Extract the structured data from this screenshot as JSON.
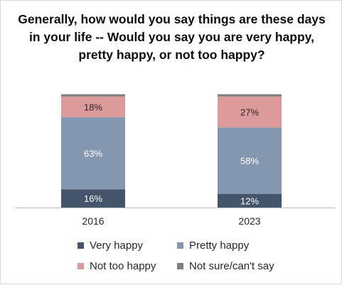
{
  "chart_data": {
    "type": "bar",
    "stacked": true,
    "title": "Generally, how would you say things are these days in your life -- Would you say you are very happy, pretty happy, or not too happy?",
    "categories": [
      "2016",
      "2023"
    ],
    "series": [
      {
        "name": "Very happy",
        "color": "#44546a",
        "values": [
          16,
          12
        ],
        "labels": [
          "16%",
          "12%"
        ]
      },
      {
        "name": "Pretty happy",
        "color": "#8497b0",
        "values": [
          63,
          58
        ],
        "labels": [
          "63%",
          "58%"
        ]
      },
      {
        "name": "Not too happy",
        "color": "#dc9a9a",
        "values": [
          18,
          27
        ],
        "labels": [
          "18%",
          "27%"
        ]
      },
      {
        "name": "Not sure/can't say",
        "color": "#7f7f7f",
        "values": [
          2,
          2
        ],
        "labels": [
          "",
          ""
        ]
      }
    ],
    "ylim": [
      0,
      100
    ],
    "grid": false,
    "legend_position": "bottom"
  }
}
